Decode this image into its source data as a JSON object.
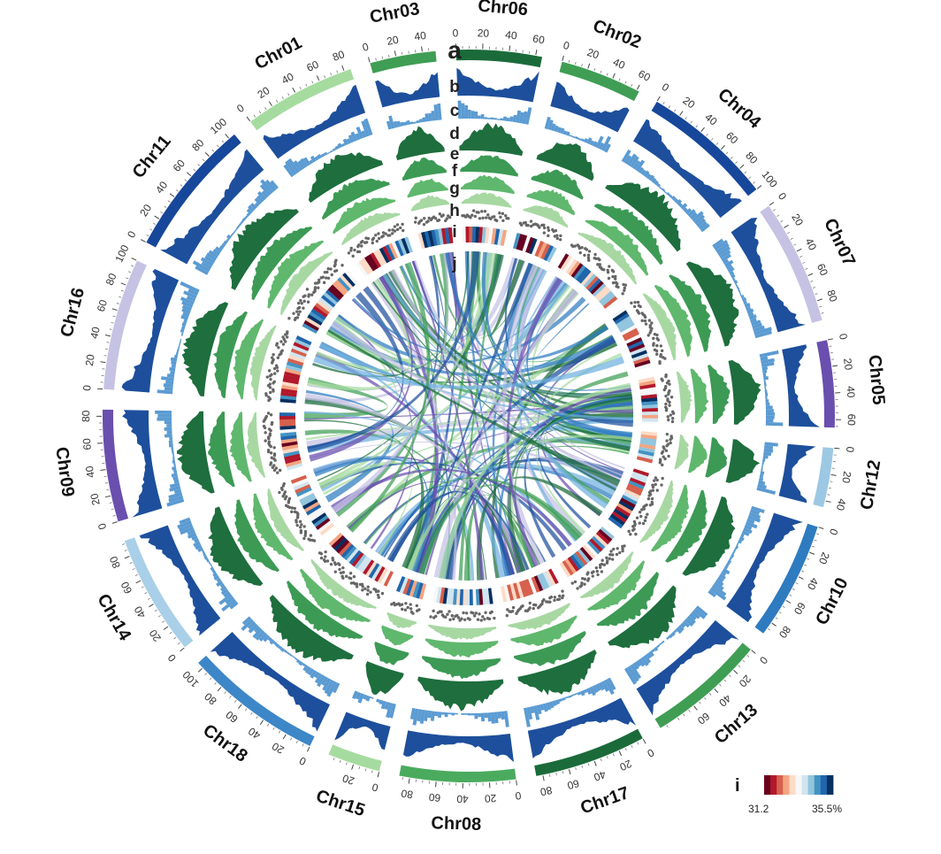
{
  "figure": {
    "chromosomes": [
      {
        "name": "Chr06",
        "length": 65,
        "color": "#1b6b3a",
        "ticks": [
          0,
          20,
          40,
          60
        ]
      },
      {
        "name": "Chr02",
        "length": 62,
        "color": "#3f9e54",
        "ticks": [
          0,
          20,
          40,
          60
        ]
      },
      {
        "name": "Chr04",
        "length": 100,
        "color": "#17479a",
        "ticks": [
          0,
          20,
          40,
          60,
          80,
          100
        ]
      },
      {
        "name": "Chr07",
        "length": 95,
        "color": "#c5c2e3",
        "ticks": [
          0,
          20,
          40,
          60,
          80
        ]
      },
      {
        "name": "Chr05",
        "length": 66,
        "color": "#6a4fae",
        "ticks": [
          0,
          20,
          40,
          60
        ]
      },
      {
        "name": "Chr12",
        "length": 45,
        "color": "#9dc8e4",
        "ticks": [
          0,
          20,
          40
        ]
      },
      {
        "name": "Chr10",
        "length": 90,
        "color": "#2f7bc0",
        "ticks": [
          0,
          20,
          40,
          60,
          80
        ]
      },
      {
        "name": "Chr13",
        "length": 90,
        "color": "#3f9e54",
        "ticks": [
          0,
          20,
          40,
          60
        ]
      },
      {
        "name": "Chr17",
        "length": 85,
        "color": "#1b6b3a",
        "ticks": [
          0,
          20,
          40,
          60,
          80
        ]
      },
      {
        "name": "Chr08",
        "length": 88,
        "color": "#4aab5e",
        "ticks": [
          0,
          20,
          40,
          60,
          80
        ]
      },
      {
        "name": "Chr15",
        "length": 40,
        "color": "#a6dba0",
        "ticks": [
          0,
          20
        ]
      },
      {
        "name": "Chr18",
        "length": 105,
        "color": "#3d87c8",
        "ticks": [
          0,
          20,
          40,
          60,
          80,
          100
        ]
      },
      {
        "name": "Chr14",
        "length": 92,
        "color": "#a9d0e8",
        "ticks": [
          0,
          20,
          40,
          60,
          80
        ]
      },
      {
        "name": "Chr09",
        "length": 85,
        "color": "#6a4fae",
        "ticks": [
          0,
          20,
          40,
          60,
          80
        ]
      },
      {
        "name": "Chr16",
        "length": 100,
        "color": "#c5c2e3",
        "ticks": [
          0,
          20,
          40,
          60,
          80,
          100
        ]
      },
      {
        "name": "Chr11",
        "length": 105,
        "color": "#17479a",
        "ticks": [
          0,
          20,
          40,
          60,
          80,
          100
        ]
      },
      {
        "name": "Chr01",
        "length": 85,
        "color": "#a6dba0",
        "ticks": [
          0,
          20,
          40,
          60,
          80
        ]
      },
      {
        "name": "Chr03",
        "length": 50,
        "color": "#3f9e54",
        "ticks": [
          0,
          20,
          40
        ]
      }
    ],
    "track_labels": [
      "a",
      "b",
      "c",
      "d",
      "e",
      "f",
      "g",
      "h",
      "i",
      "j"
    ],
    "tracks": {
      "b": {
        "color": "#1d4f9c"
      },
      "c": {
        "color": "#5b9bd2"
      },
      "d": {
        "color": "#1e6e3e"
      },
      "e": {
        "color": "#3c9a55"
      },
      "f": {
        "color": "#5fb86d"
      },
      "g": {
        "color": "#a7d8a2"
      },
      "h": {
        "color": "#666666"
      }
    },
    "link_colors": [
      "#1d4f9c",
      "#2f7bc0",
      "#6fb0df",
      "#a6dba0",
      "#3f9e54",
      "#1b6b3a",
      "#c5c2e3",
      "#6a4fae"
    ],
    "legend": {
      "title": "i",
      "min_label": "31.2",
      "max_label": "35.5%",
      "colors": [
        "#67001f",
        "#b2182b",
        "#d6604d",
        "#f4a582",
        "#fddbc7",
        "#f7f7f7",
        "#d1e5f0",
        "#92c5de",
        "#4393c3",
        "#2166ac",
        "#053061"
      ]
    }
  }
}
